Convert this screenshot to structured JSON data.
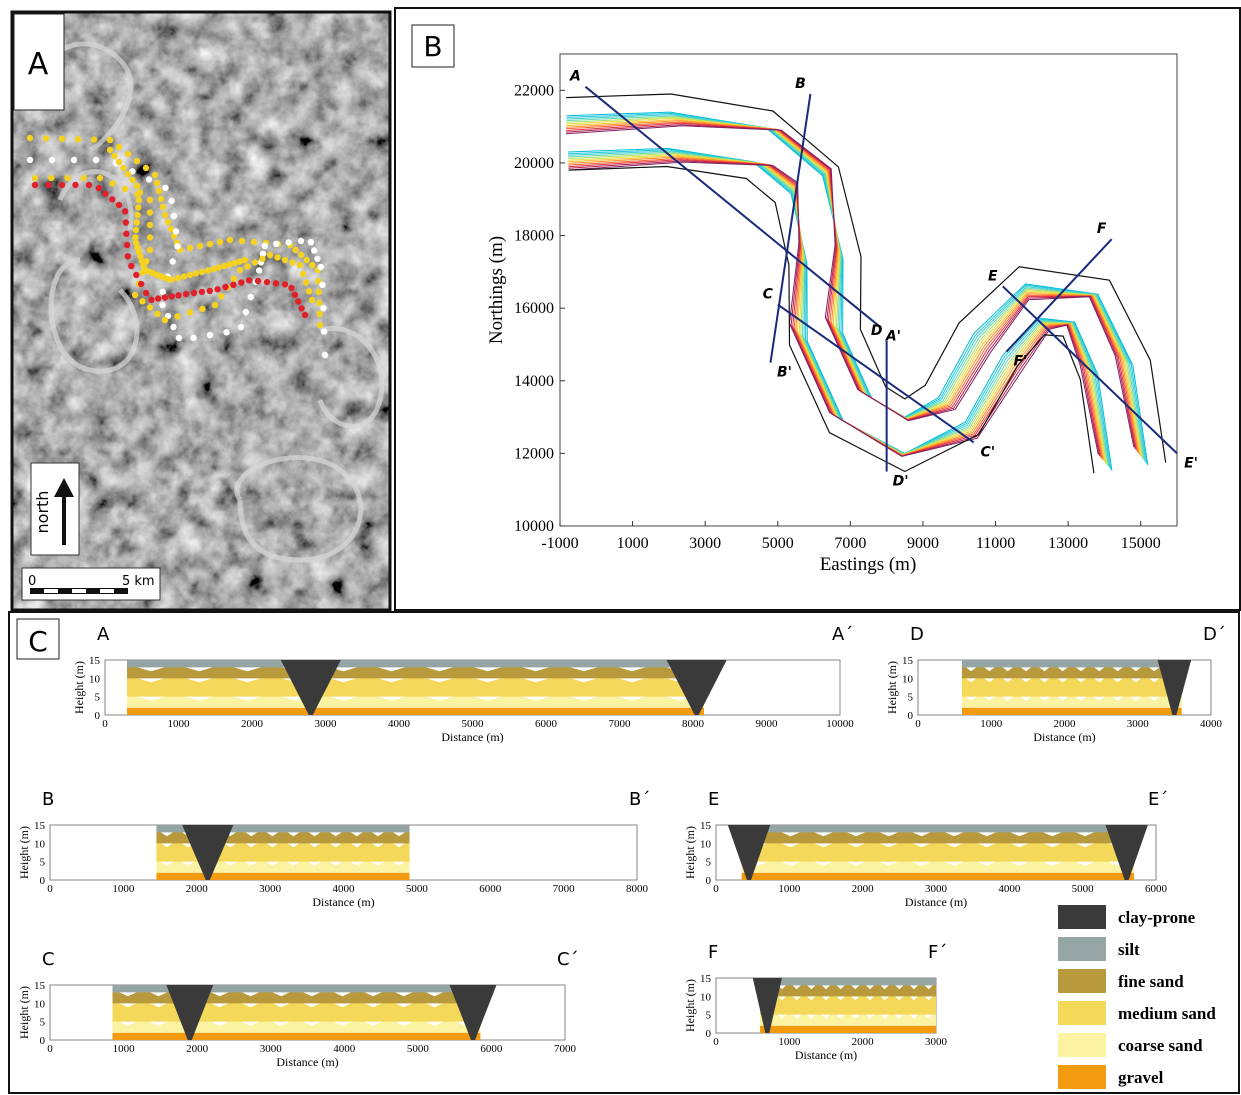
{
  "panel_a": {
    "label": "A",
    "north_label": "north",
    "scale_zero": "0",
    "scale_text": "5 km",
    "colors": {
      "white": "#ffffff",
      "yellow": "#f4d21f",
      "red": "#e0202a"
    }
  },
  "panel_b": {
    "label": "B",
    "xlabel": "Eastings (m)",
    "ylabel": "Northings (m)",
    "x_ticks": [
      "-1000",
      "1000",
      "3000",
      "5000",
      "7000",
      "9000",
      "11000",
      "13000",
      "15000"
    ],
    "y_ticks": [
      "10000",
      "12000",
      "14000",
      "16000",
      "18000",
      "20000",
      "22000"
    ],
    "xlim": [
      -1000,
      16000
    ],
    "ylim": [
      10000,
      23000
    ],
    "sections": [
      {
        "start": "A",
        "end": "A'",
        "p1": [
          -300,
          22100
        ],
        "p2": [
          7800,
          15500
        ]
      },
      {
        "start": "B",
        "end": "B'",
        "p1": [
          5900,
          21900
        ],
        "p2": [
          4800,
          14500
        ]
      },
      {
        "start": "C",
        "end": "C'",
        "p1": [
          5000,
          16100
        ],
        "p2": [
          10400,
          12300
        ]
      },
      {
        "start": "D",
        "end": "D'",
        "p1": [
          8000,
          15100
        ],
        "p2": [
          8000,
          11500
        ]
      },
      {
        "start": "E",
        "end": "E'",
        "p1": [
          11200,
          16600
        ],
        "p2": [
          16000,
          12000
        ]
      },
      {
        "start": "F",
        "end": "F'",
        "p1": [
          14200,
          17900
        ],
        "p2": [
          11300,
          14800
        ]
      }
    ]
  },
  "panel_c": {
    "label": "C",
    "xlabel": "Distance (m)",
    "ylabel": "Height (m)",
    "y_ticks": [
      "0",
      "5",
      "10",
      "15"
    ],
    "sections": [
      {
        "id": "A",
        "start": "A",
        "end": "A´",
        "x_ticks": [
          "0",
          "1000",
          "2000",
          "3000",
          "4000",
          "5000",
          "6000",
          "7000",
          "8000",
          "9000",
          "10000"
        ],
        "xmax": 10000,
        "channel": [
          300,
          8150
        ],
        "plugs": [
          2800,
          8050
        ]
      },
      {
        "id": "D",
        "start": "D",
        "end": "D´",
        "x_ticks": [
          "0",
          "1000",
          "2000",
          "3000",
          "4000"
        ],
        "xmax": 4000,
        "channel": [
          600,
          3600
        ],
        "plugs": [
          3500
        ]
      },
      {
        "id": "B",
        "start": "B",
        "end": "B´",
        "x_ticks": [
          "0",
          "1000",
          "2000",
          "3000",
          "4000",
          "5000",
          "6000",
          "7000",
          "8000"
        ],
        "xmax": 8000,
        "channel": [
          1450,
          4900
        ],
        "plugs": [
          2150
        ]
      },
      {
        "id": "E",
        "start": "E",
        "end": "E´",
        "x_ticks": [
          "0",
          "1000",
          "2000",
          "3000",
          "4000",
          "5000",
          "6000"
        ],
        "xmax": 6000,
        "channel": [
          350,
          5700
        ],
        "plugs": [
          450,
          5600
        ]
      },
      {
        "id": "C",
        "start": "C",
        "end": "C´",
        "x_ticks": [
          "0",
          "1000",
          "2000",
          "3000",
          "4000",
          "5000",
          "6000",
          "7000"
        ],
        "xmax": 7000,
        "channel": [
          850,
          5850
        ],
        "plugs": [
          1900,
          5750
        ]
      },
      {
        "id": "F",
        "start": "F",
        "end": "F´",
        "x_ticks": [
          "0",
          "1000",
          "2000",
          "3000"
        ],
        "xmax": 3000,
        "channel": [
          600,
          3000
        ],
        "plugs": [
          700
        ]
      }
    ]
  },
  "legend": [
    {
      "label": "clay-prone",
      "color": "#3a3a3a"
    },
    {
      "label": "silt",
      "color": "#95a5a3"
    },
    {
      "label": "fine sand",
      "color": "#b89a3c"
    },
    {
      "label": "medium sand",
      "color": "#f4d85a"
    },
    {
      "label": "coarse sand",
      "color": "#fbf3a2"
    },
    {
      "label": "gravel",
      "color": "#f29a10"
    }
  ]
}
